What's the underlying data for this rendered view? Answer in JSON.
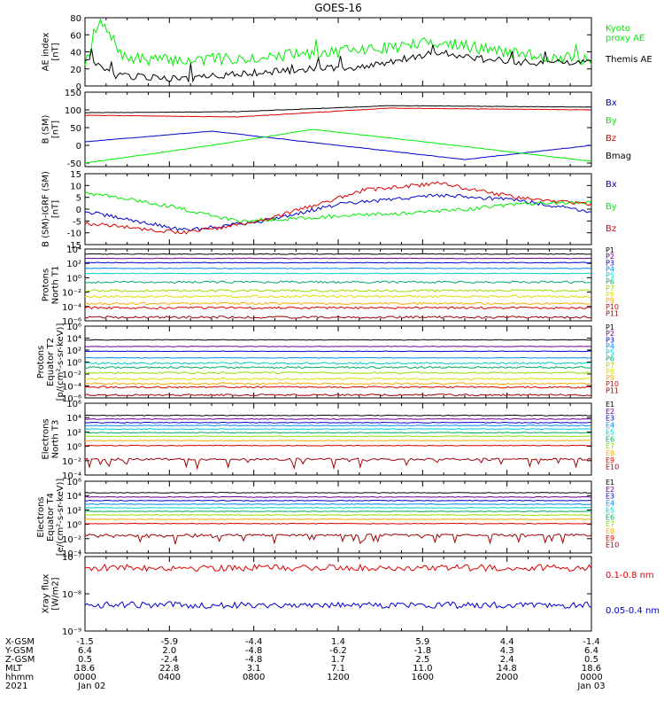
{
  "title": "GOES-16",
  "colors": {
    "axis": "#000000",
    "black": "#000000",
    "green": "#00ee00",
    "blue": "#0000cc",
    "red": "#dd0000",
    "dark_red": "#a00000"
  },
  "chart_data": [
    {
      "type": "line",
      "panel": "AE index",
      "ylabel": "AE index\n[nT]",
      "ylim": [
        0,
        80
      ],
      "yticks": [
        "0",
        "20",
        "40",
        "60",
        "80"
      ],
      "yscale": "linear",
      "series": [
        {
          "name": "Kyoto\nproxy AE",
          "color": "#00ee00",
          "keypoints": [
            [
              0,
              28
            ],
            [
              0.03,
              75
            ],
            [
              0.08,
              32
            ],
            [
              0.2,
              30
            ],
            [
              0.35,
              34
            ],
            [
              0.5,
              40
            ],
            [
              0.6,
              45
            ],
            [
              0.7,
              52
            ],
            [
              0.8,
              42
            ],
            [
              0.9,
              35
            ],
            [
              1,
              30
            ]
          ]
        },
        {
          "name": "Themis AE",
          "color": "#000000",
          "keypoints": [
            [
              0,
              32
            ],
            [
              0.06,
              12
            ],
            [
              0.2,
              8
            ],
            [
              0.3,
              14
            ],
            [
              0.45,
              20
            ],
            [
              0.55,
              22
            ],
            [
              0.7,
              40
            ],
            [
              0.8,
              30
            ],
            [
              0.9,
              27
            ],
            [
              1,
              28
            ]
          ]
        }
      ]
    },
    {
      "type": "line",
      "panel": "B (SM)",
      "ylabel": "B (SM)\n[nT]",
      "ylim": [
        -60,
        150
      ],
      "yticks": [
        "-50",
        "0",
        "50",
        "100",
        "150"
      ],
      "yscale": "linear",
      "series": [
        {
          "name": "Bx",
          "color": "#0000cc",
          "keypoints": [
            [
              0,
              10
            ],
            [
              0.25,
              40
            ],
            [
              0.5,
              0
            ],
            [
              0.75,
              -40
            ],
            [
              1,
              0
            ]
          ]
        },
        {
          "name": "By",
          "color": "#00ee00",
          "keypoints": [
            [
              0,
              -50
            ],
            [
              0.25,
              0
            ],
            [
              0.45,
              45
            ],
            [
              0.7,
              5
            ],
            [
              1,
              -45
            ]
          ]
        },
        {
          "name": "Bz",
          "color": "#dd0000",
          "keypoints": [
            [
              0,
              85
            ],
            [
              0.3,
              80
            ],
            [
              0.6,
              105
            ],
            [
              1,
              100
            ]
          ]
        },
        {
          "name": "Bmag",
          "color": "#000000",
          "keypoints": [
            [
              0,
              92
            ],
            [
              0.3,
              95
            ],
            [
              0.6,
              112
            ],
            [
              1,
              108
            ]
          ]
        }
      ]
    },
    {
      "type": "line",
      "panel": "B (SM)-IGRF (SM)",
      "ylabel": "B (SM)-IGRF (SM)\n[nT]",
      "ylim": [
        -15,
        15
      ],
      "yticks": [
        "-15",
        "-10",
        "-5",
        "0",
        "5",
        "10",
        "15"
      ],
      "yscale": "linear",
      "series": [
        {
          "name": "Bx",
          "color": "#0000cc",
          "keypoints": [
            [
              0,
              -1
            ],
            [
              0.2,
              -9
            ],
            [
              0.35,
              -5
            ],
            [
              0.5,
              2
            ],
            [
              0.7,
              6
            ],
            [
              0.85,
              4
            ],
            [
              1,
              -1
            ]
          ]
        },
        {
          "name": "By",
          "color": "#00ee00",
          "keypoints": [
            [
              0,
              7
            ],
            [
              0.15,
              2
            ],
            [
              0.3,
              -5
            ],
            [
              0.5,
              -3
            ],
            [
              0.7,
              -1
            ],
            [
              0.85,
              2
            ],
            [
              1,
              3
            ]
          ]
        },
        {
          "name": "Bz",
          "color": "#dd0000",
          "keypoints": [
            [
              0,
              -6
            ],
            [
              0.2,
              -10
            ],
            [
              0.35,
              -5
            ],
            [
              0.55,
              8
            ],
            [
              0.7,
              11
            ],
            [
              0.85,
              5
            ],
            [
              1,
              2
            ]
          ]
        }
      ]
    },
    {
      "type": "line",
      "panel": "Protons North T1",
      "ylabel": "Protons\nNorth T1",
      "ylim": [
        -6,
        4
      ],
      "yticks": [
        "10⁻⁶",
        "10⁻⁴",
        "10⁻²",
        "10⁰",
        "10²",
        "10⁴"
      ],
      "yscale": "log",
      "series": [
        {
          "name": "P1",
          "color": "#000000",
          "log10_level": 3.3
        },
        {
          "name": "P2",
          "color": "#6a008c",
          "log10_level": 2.7
        },
        {
          "name": "P3",
          "color": "#0000cc",
          "log10_level": 2.1
        },
        {
          "name": "P4",
          "color": "#0088ee",
          "log10_level": 1.3
        },
        {
          "name": "P5",
          "color": "#00cccc",
          "log10_level": 0.6
        },
        {
          "name": "P6",
          "color": "#00aa66",
          "log10_level": -0.6
        },
        {
          "name": "P7",
          "color": "#99dd00",
          "log10_level": -1.8
        },
        {
          "name": "P8",
          "color": "#dddd00",
          "log10_level": -2.6
        },
        {
          "name": "P9",
          "color": "#ffaa00",
          "log10_level": -3.6
        },
        {
          "name": "P10",
          "color": "#dd0000",
          "log10_level": -4.2
        },
        {
          "name": "P11",
          "color": "#a00000",
          "log10_level": -5.5
        }
      ]
    },
    {
      "type": "line",
      "panel": "Protons Equator T2",
      "ylabel": "Protons\nEquator T2\n[p/(cm²-s-sr-keV)]",
      "ylim": [
        -6,
        6
      ],
      "yticks": [
        "10⁻⁶",
        "10⁻⁴",
        "10⁻²",
        "10⁰",
        "10²",
        "10⁴",
        "10⁶"
      ],
      "yscale": "log",
      "series": [
        {
          "name": "P1",
          "color": "#000000",
          "log10_level": 3.7
        },
        {
          "name": "P2",
          "color": "#6a008c",
          "log10_level": 2.6
        },
        {
          "name": "P3",
          "color": "#0000cc",
          "log10_level": 1.8
        },
        {
          "name": "P4",
          "color": "#0088ee",
          "log10_level": 0.7
        },
        {
          "name": "P5",
          "color": "#00cccc",
          "log10_level": -0.2
        },
        {
          "name": "P6",
          "color": "#00aa66",
          "log10_level": -0.9
        },
        {
          "name": "P7",
          "color": "#99dd00",
          "log10_level": -1.8
        },
        {
          "name": "P8",
          "color": "#dddd00",
          "log10_level": -2.8
        },
        {
          "name": "P9",
          "color": "#ffaa00",
          "log10_level": -3.6
        },
        {
          "name": "P10",
          "color": "#dd0000",
          "log10_level": -4.2
        },
        {
          "name": "P11",
          "color": "#a00000",
          "log10_level": -5.5
        }
      ]
    },
    {
      "type": "line",
      "panel": "Electrons North T3",
      "ylabel": "Electrons\nNorth T3",
      "ylim": [
        -4,
        6
      ],
      "yticks": [
        "10⁻⁴",
        "10⁻²",
        "10⁰",
        "10²",
        "10⁴",
        "10⁶"
      ],
      "yscale": "log",
      "series": [
        {
          "name": "E1",
          "color": "#000000",
          "log10_level": 4.3
        },
        {
          "name": "E2",
          "color": "#6a008c",
          "log10_level": 3.8
        },
        {
          "name": "E3",
          "color": "#0000cc",
          "log10_level": 3.3
        },
        {
          "name": "E4",
          "color": "#0088ee",
          "log10_level": 2.9
        },
        {
          "name": "E5",
          "color": "#00cccc",
          "log10_level": 2.4
        },
        {
          "name": "E6",
          "color": "#00aa66",
          "log10_level": 1.9
        },
        {
          "name": "E7",
          "color": "#99dd00",
          "log10_level": 1.4
        },
        {
          "name": "E8",
          "color": "#ffaa00",
          "log10_level": 0.8
        },
        {
          "name": "E9",
          "color": "#dd0000",
          "log10_level": 0.1
        },
        {
          "name": "E10",
          "color": "#a00000",
          "log10_level": -1.8
        }
      ]
    },
    {
      "type": "line",
      "panel": "Electrons Equator T4",
      "ylabel": "Electrons\nEquator T4\n[e/(cm²-s-sr-keV)]",
      "ylim": [
        -4,
        6
      ],
      "yticks": [
        "10⁻⁴",
        "10⁻²",
        "10⁰",
        "10²",
        "10⁴",
        "10⁶"
      ],
      "yscale": "log",
      "series": [
        {
          "name": "E1",
          "color": "#000000",
          "log10_level": 4.4
        },
        {
          "name": "E2",
          "color": "#6a008c",
          "log10_level": 3.8
        },
        {
          "name": "E3",
          "color": "#0000cc",
          "log10_level": 3.3
        },
        {
          "name": "E4",
          "color": "#0088ee",
          "log10_level": 2.8
        },
        {
          "name": "E5",
          "color": "#00cccc",
          "log10_level": 2.3
        },
        {
          "name": "E6",
          "color": "#00aa66",
          "log10_level": 1.8
        },
        {
          "name": "E7",
          "color": "#99dd00",
          "log10_level": 1.3
        },
        {
          "name": "E8",
          "color": "#ffaa00",
          "log10_level": 0.7
        },
        {
          "name": "E9",
          "color": "#dd0000",
          "log10_level": 0.1
        },
        {
          "name": "E10",
          "color": "#a00000",
          "log10_level": -1.5
        }
      ]
    },
    {
      "type": "line",
      "panel": "Xray flux",
      "ylabel": "Xray flux\n[W/m2]",
      "ylim": [
        -9,
        -7
      ],
      "yticks": [
        "10⁻⁹",
        "10⁻⁸",
        "10⁻⁷"
      ],
      "yscale": "log",
      "series": [
        {
          "name": "0.1-0.8 nm",
          "color": "#dd0000",
          "log10_level": -7.3
        },
        {
          "name": "0.05-0.4 nm",
          "color": "#0000cc",
          "log10_level": -8.3
        }
      ]
    }
  ],
  "x_axis": {
    "row_labels": [
      "X-GSM",
      "Y-GSM",
      "Z-GSM",
      "MLT",
      "hhmm",
      "2021"
    ],
    "columns": [
      [
        "-1.5",
        "6.4",
        "0.5",
        "18.6",
        "0000",
        "Jan 02"
      ],
      [
        "-5.9",
        "2.0",
        "-2.4",
        "22.8",
        "0400",
        ""
      ],
      [
        "-4.4",
        "-4.8",
        "-4.8",
        "3.1",
        "0800",
        ""
      ],
      [
        "1.4",
        "-6.2",
        "1.7",
        "7.1",
        "1200",
        ""
      ],
      [
        "5.9",
        "-1.8",
        "2.5",
        "11.0",
        "1600",
        ""
      ],
      [
        "4.4",
        "4.3",
        "2.4",
        "14.8",
        "2000",
        ""
      ],
      [
        "-1.4",
        "6.4",
        "0.5",
        "18.6",
        "0000",
        "Jan 03"
      ]
    ]
  }
}
